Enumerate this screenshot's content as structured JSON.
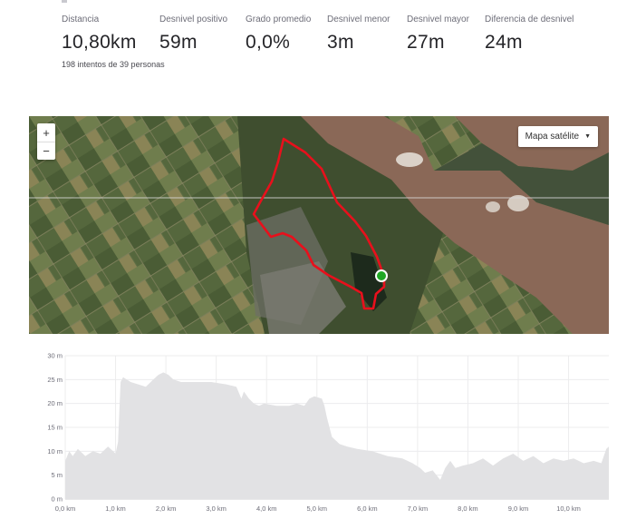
{
  "stats": [
    {
      "label": "Distancia",
      "value": "10,80km"
    },
    {
      "label": "Desnivel positivo",
      "value": "59m"
    },
    {
      "label": "Grado promedio",
      "value": "0,0%"
    },
    {
      "label": "Desnivel menor",
      "value": "3m"
    },
    {
      "label": "Desnivel mayor",
      "value": "27m"
    },
    {
      "label": "Diferencia de desnivel",
      "value": "24m"
    }
  ],
  "attempts_text": "198 intentos de 39 personas",
  "map": {
    "zoom_in": "+",
    "zoom_out": "−",
    "map_type_label": "Mapa satélite",
    "map_type_icon": "caret-down-icon",
    "route_color": "#e8101c",
    "start_marker_color": "#1fa824"
  },
  "chart_data": {
    "type": "area",
    "xlabel": "",
    "ylabel": "",
    "x_ticks": [
      "0,0 km",
      "1,0 km",
      "2,0 km",
      "3,0 km",
      "4,0 km",
      "5,0 km",
      "6,0 km",
      "7,0 km",
      "8,0 km",
      "9,0 km",
      "10,0 km"
    ],
    "y_ticks": [
      "0 m",
      "5 m",
      "10 m",
      "15 m",
      "20 m",
      "25 m",
      "30 m"
    ],
    "xlim": [
      0,
      10.8
    ],
    "ylim": [
      0,
      30
    ],
    "grid": true,
    "fill_color": "#e2e2e4",
    "series": [
      {
        "x": [
          0,
          0.08,
          0.15,
          0.25,
          0.4,
          0.55,
          0.7,
          0.85,
          0.95,
          1.0,
          1.05,
          1.1,
          1.15,
          1.3,
          1.45,
          1.6,
          1.75,
          1.85,
          1.95,
          2.05,
          2.15,
          2.3,
          2.6,
          2.9,
          3.2,
          3.4,
          3.5,
          3.55,
          3.65,
          3.75,
          3.85,
          3.95,
          4.2,
          4.45,
          4.6,
          4.75,
          4.85,
          4.95,
          5.1,
          5.15,
          5.2,
          5.3,
          5.45,
          5.6,
          5.8,
          6.1,
          6.4,
          6.7,
          6.9,
          7.05,
          7.15,
          7.3,
          7.45,
          7.55,
          7.65,
          7.75,
          7.9,
          8.1,
          8.3,
          8.5,
          8.7,
          8.9,
          9.1,
          9.3,
          9.5,
          9.7,
          9.9,
          10.1,
          10.3,
          10.5,
          10.65,
          10.75,
          10.8
        ],
        "y": [
          8,
          10,
          9,
          10.5,
          9,
          10,
          9.5,
          11,
          10,
          9.5,
          12,
          24.5,
          25.5,
          24.5,
          24,
          23.5,
          25,
          26,
          26.5,
          26,
          25,
          24.5,
          24.5,
          24.5,
          24,
          23.5,
          21,
          22.5,
          21,
          20,
          19.5,
          20,
          19.5,
          19.5,
          20,
          19.5,
          21,
          21.5,
          21,
          19.5,
          17,
          13,
          11.5,
          11,
          10.5,
          10,
          9,
          8.5,
          7.5,
          6.5,
          5.5,
          6,
          4,
          6.5,
          8,
          6.5,
          7,
          7.5,
          8.5,
          7,
          8.5,
          9.5,
          8,
          9,
          7.5,
          8.5,
          8,
          8.5,
          7.5,
          8,
          7.5,
          10.5,
          11
        ]
      }
    ]
  }
}
